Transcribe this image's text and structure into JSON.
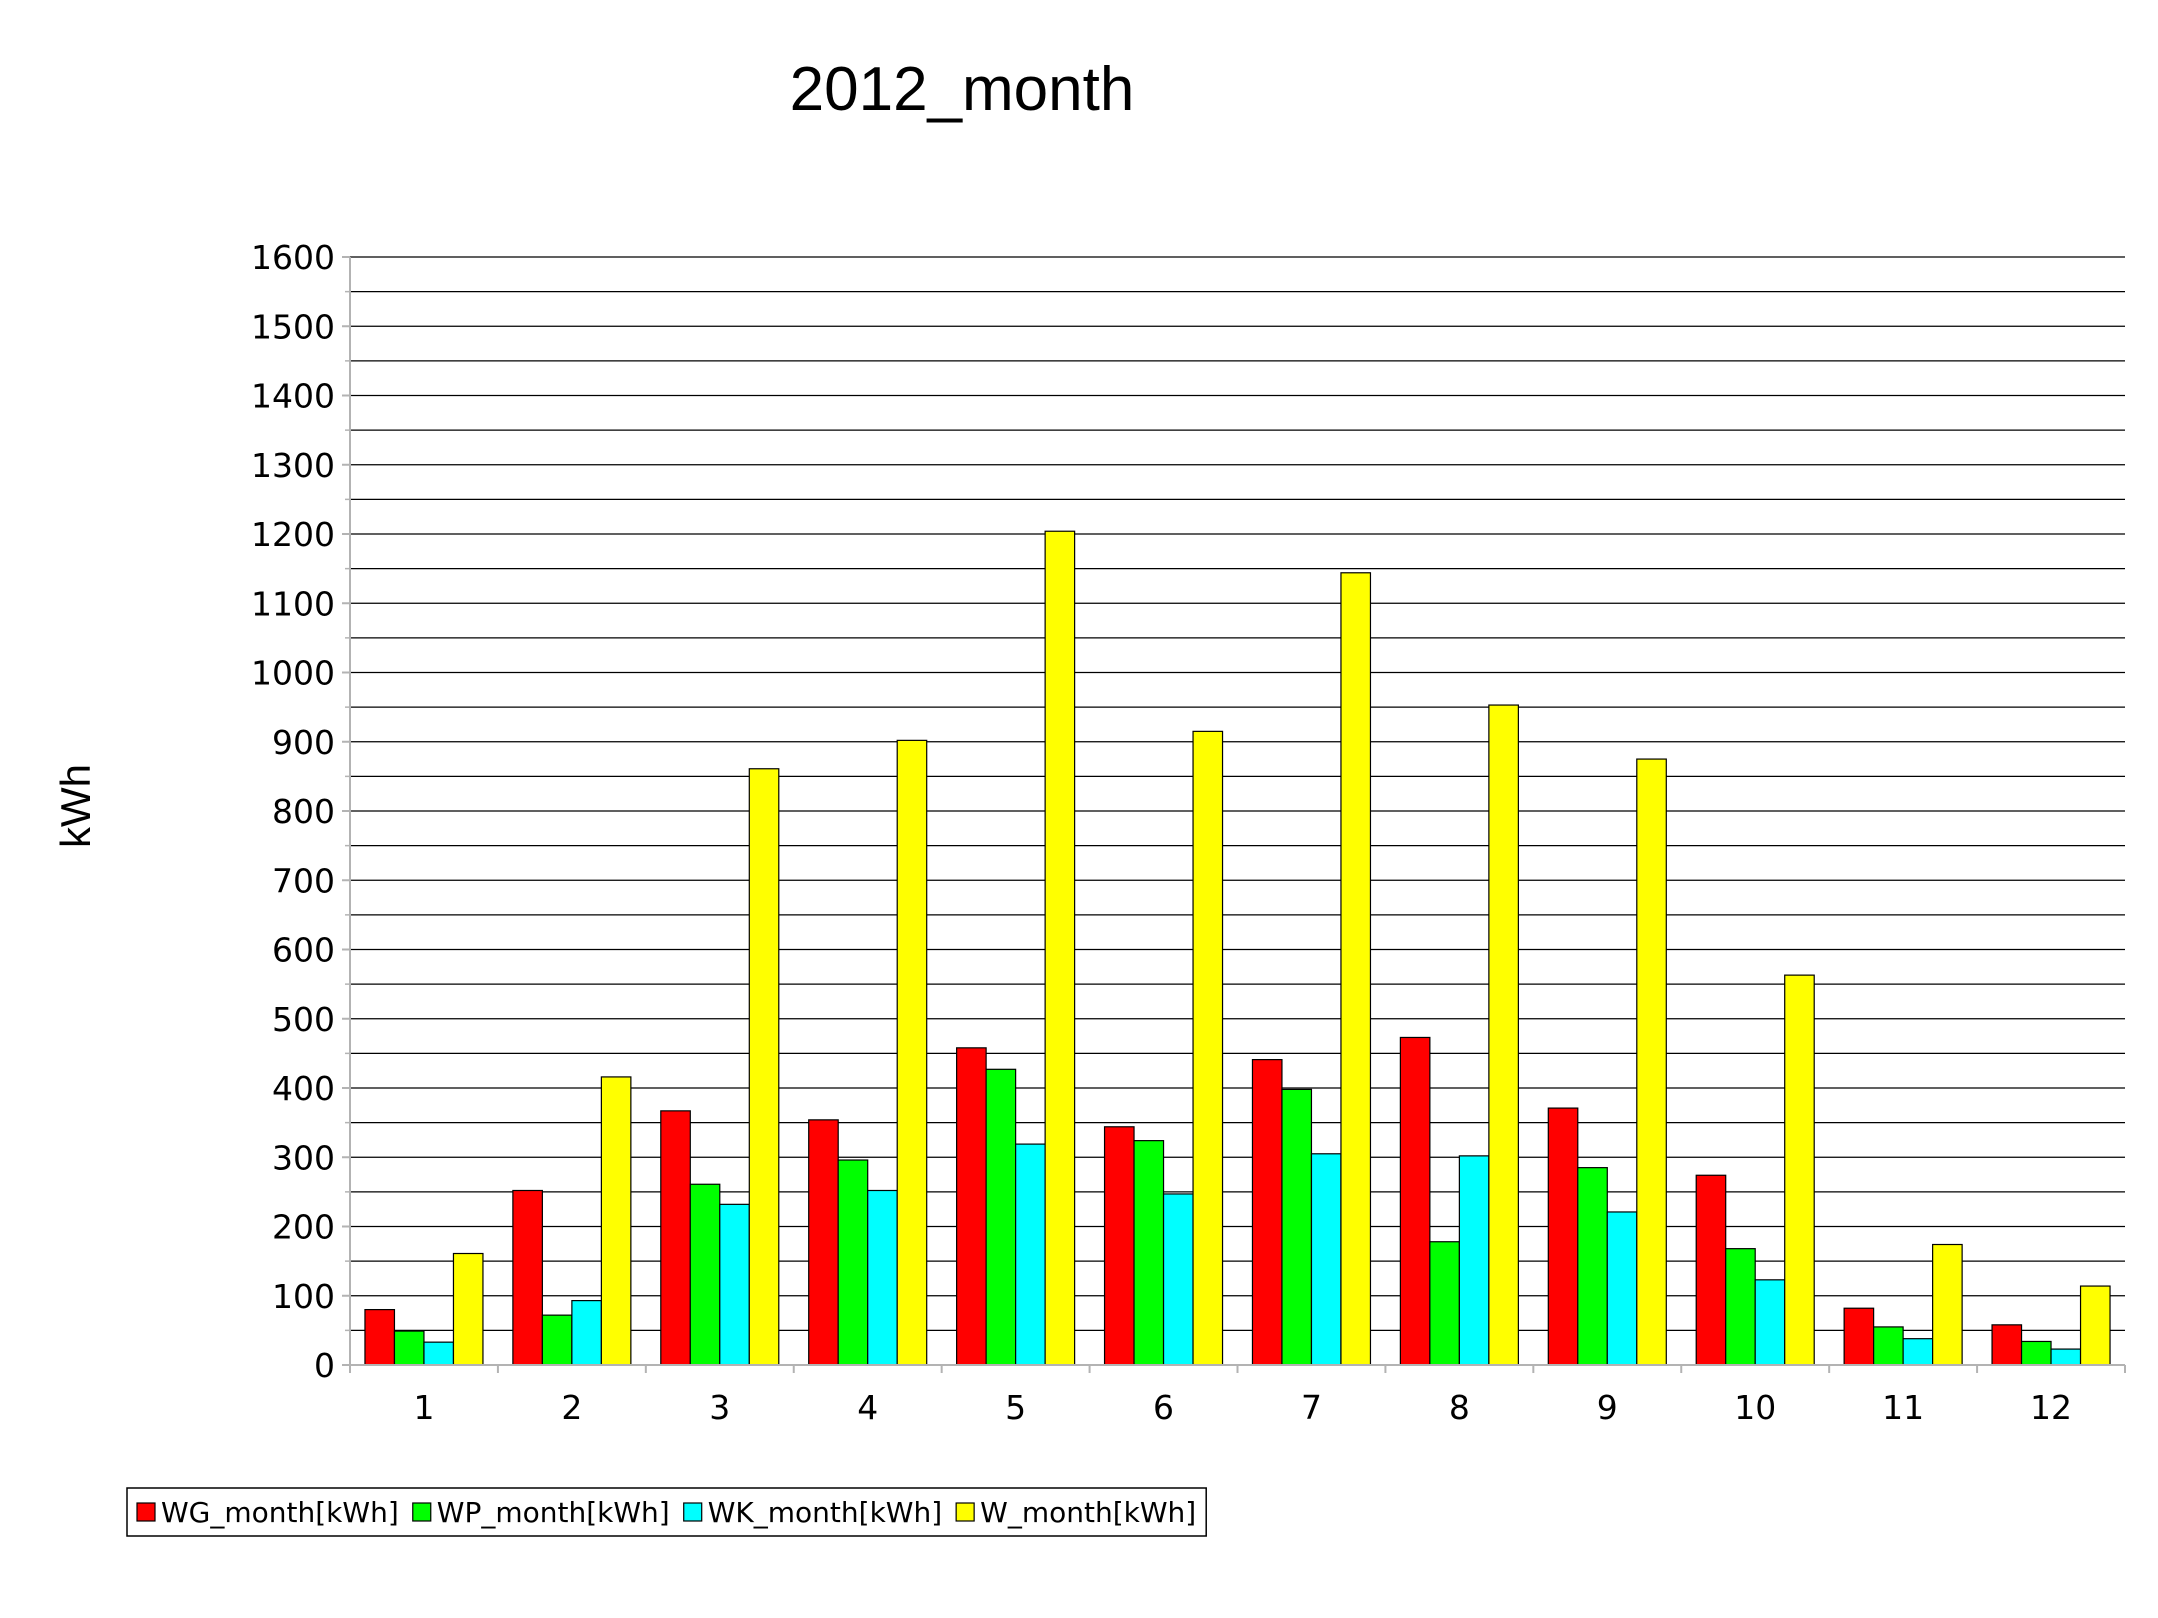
{
  "chart_data": {
    "type": "bar",
    "title": "2012_month",
    "xlabel": "",
    "ylabel": "kWh",
    "ylim": [
      0,
      1600
    ],
    "ytick_step": 100,
    "minor_step": 50,
    "grid": true,
    "legend_position": "bottom-left",
    "categories": [
      "1",
      "2",
      "3",
      "4",
      "5",
      "6",
      "7",
      "8",
      "9",
      "10",
      "11",
      "12"
    ],
    "series": [
      {
        "name": "WG_month[kWh]",
        "color": "#ff0000",
        "values": [
          80,
          252,
          367,
          354,
          458,
          344,
          441,
          473,
          371,
          274,
          82,
          58
        ]
      },
      {
        "name": "WP_month[kWh]",
        "color": "#00ff00",
        "values": [
          49,
          72,
          261,
          296,
          427,
          324,
          398,
          178,
          285,
          168,
          55,
          34
        ]
      },
      {
        "name": "WK_month[kWh]",
        "color": "#00ffff",
        "values": [
          33,
          93,
          232,
          252,
          319,
          247,
          305,
          302,
          221,
          123,
          38,
          23
        ]
      },
      {
        "name": "W_month[kWh]",
        "color": "#ffff00",
        "values": [
          161,
          416,
          861,
          902,
          1204,
          915,
          1144,
          953,
          875,
          563,
          174,
          114
        ]
      }
    ]
  }
}
